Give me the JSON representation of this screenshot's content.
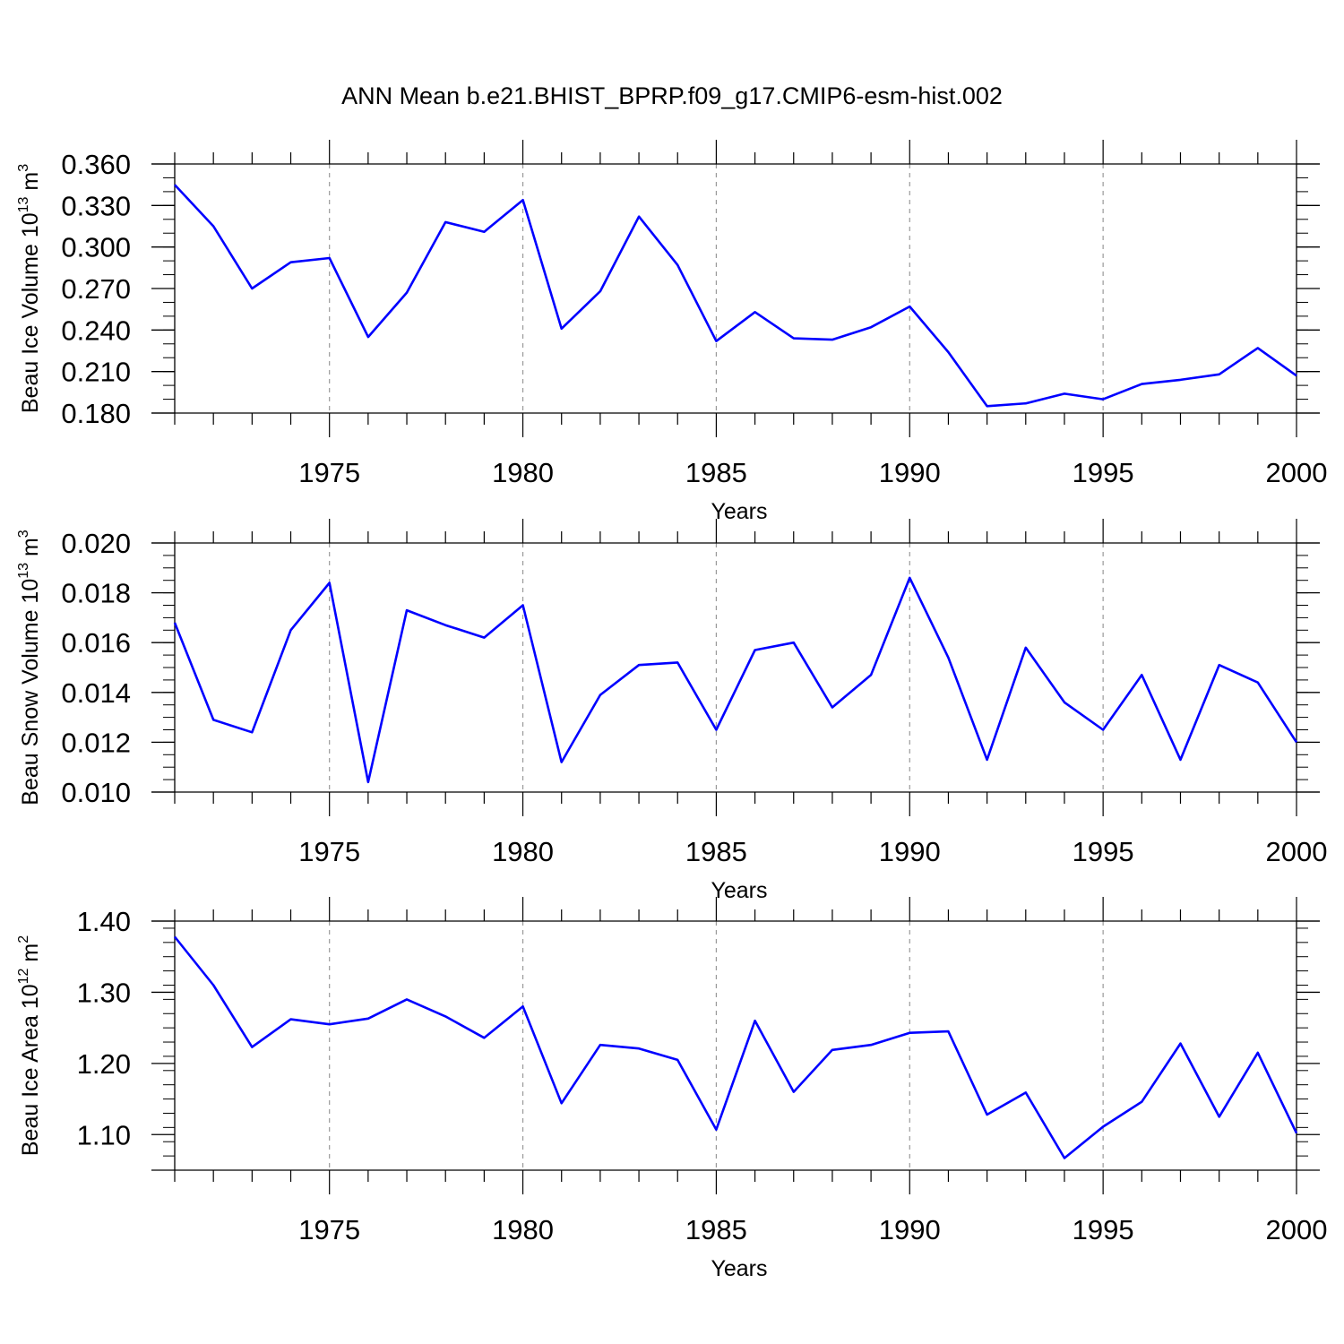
{
  "figure": {
    "title": "ANN Mean b.e21.BHIST_BPRP.f09_g17.CMIP6-esm-hist.002"
  },
  "colors": {
    "line": "#0000ff",
    "axis": "#000000",
    "grid": "#999999"
  },
  "chart_data": [
    {
      "type": "line",
      "ylabel_main": "Beau Ice Volume 10",
      "ylabel_exp": "13",
      "ylabel_unit": " m",
      "ylabel_unit_exp": "3",
      "xlabel": "Years",
      "xlim": [
        1971,
        2000
      ],
      "ylim": [
        0.18,
        0.36
      ],
      "yticks": [
        0.18,
        0.21,
        0.24,
        0.27,
        0.3,
        0.33,
        0.36
      ],
      "ytick_labels": [
        "0.180",
        "0.210",
        "0.240",
        "0.270",
        "0.300",
        "0.330",
        "0.360"
      ],
      "yminor": 0.01,
      "xticks": [
        1975,
        1980,
        1985,
        1990,
        1995,
        2000
      ],
      "xtick_labels": [
        "1975",
        "1980",
        "1985",
        "1990",
        "1995",
        "2000"
      ],
      "grid_x": true,
      "x": [
        1971,
        1972,
        1973,
        1974,
        1975,
        1976,
        1977,
        1978,
        1979,
        1980,
        1981,
        1982,
        1983,
        1984,
        1985,
        1986,
        1987,
        1988,
        1989,
        1990,
        1991,
        1992,
        1993,
        1994,
        1995,
        1996,
        1997,
        1998,
        1999,
        2000
      ],
      "y": [
        0.345,
        0.315,
        0.27,
        0.289,
        0.292,
        0.235,
        0.267,
        0.318,
        0.311,
        0.334,
        0.241,
        0.268,
        0.322,
        0.287,
        0.232,
        0.253,
        0.234,
        0.233,
        0.242,
        0.257,
        0.224,
        0.185,
        0.187,
        0.194,
        0.19,
        0.201,
        0.204,
        0.208,
        0.227,
        0.207
      ]
    },
    {
      "type": "line",
      "ylabel_main": "Beau Snow Volume 10",
      "ylabel_exp": "13",
      "ylabel_unit": " m",
      "ylabel_unit_exp": "3",
      "xlabel": "Years",
      "xlim": [
        1971,
        2000
      ],
      "ylim": [
        0.01,
        0.02
      ],
      "yticks": [
        0.01,
        0.012,
        0.014,
        0.016,
        0.018,
        0.02
      ],
      "ytick_labels": [
        "0.010",
        "0.012",
        "0.014",
        "0.016",
        "0.018",
        "0.020"
      ],
      "yminor": 0.0005,
      "xticks": [
        1975,
        1980,
        1985,
        1990,
        1995,
        2000
      ],
      "xtick_labels": [
        "1975",
        "1980",
        "1985",
        "1990",
        "1995",
        "2000"
      ],
      "grid_x": true,
      "x": [
        1971,
        1972,
        1973,
        1974,
        1975,
        1976,
        1977,
        1978,
        1979,
        1980,
        1981,
        1982,
        1983,
        1984,
        1985,
        1986,
        1987,
        1988,
        1989,
        1990,
        1991,
        1992,
        1993,
        1994,
        1995,
        1996,
        1997,
        1998,
        1999,
        2000
      ],
      "y": [
        0.0168,
        0.0129,
        0.0124,
        0.0165,
        0.0184,
        0.0104,
        0.0173,
        0.0167,
        0.0162,
        0.0175,
        0.0112,
        0.0139,
        0.0151,
        0.0152,
        0.0125,
        0.0157,
        0.016,
        0.0134,
        0.0147,
        0.0186,
        0.0154,
        0.0113,
        0.0158,
        0.0136,
        0.0125,
        0.0147,
        0.0113,
        0.0151,
        0.0144,
        0.012
      ]
    },
    {
      "type": "line",
      "ylabel_main": "Beau Ice Area 10",
      "ylabel_exp": "12",
      "ylabel_unit": " m",
      "ylabel_unit_exp": "2",
      "xlabel": "Years",
      "xlim": [
        1971,
        2000
      ],
      "ylim": [
        1.05,
        1.4
      ],
      "yticks": [
        1.1,
        1.2,
        1.3,
        1.4
      ],
      "ytick_labels": [
        "1.10",
        "1.20",
        "1.30",
        "1.40"
      ],
      "yminor": 0.02,
      "xticks": [
        1975,
        1980,
        1985,
        1990,
        1995,
        2000
      ],
      "xtick_labels": [
        "1975",
        "1980",
        "1985",
        "1990",
        "1995",
        "2000"
      ],
      "grid_x": true,
      "x": [
        1971,
        1972,
        1973,
        1974,
        1975,
        1976,
        1977,
        1978,
        1979,
        1980,
        1981,
        1982,
        1983,
        1984,
        1985,
        1986,
        1987,
        1988,
        1989,
        1990,
        1991,
        1992,
        1993,
        1994,
        1995,
        1996,
        1997,
        1998,
        1999,
        2000
      ],
      "y": [
        1.378,
        1.31,
        1.223,
        1.262,
        1.255,
        1.263,
        1.29,
        1.266,
        1.236,
        1.28,
        1.144,
        1.226,
        1.221,
        1.205,
        1.107,
        1.26,
        1.16,
        1.219,
        1.226,
        1.243,
        1.245,
        1.128,
        1.159,
        1.067,
        1.111,
        1.146,
        1.228,
        1.125,
        1.215,
        1.102
      ]
    }
  ]
}
